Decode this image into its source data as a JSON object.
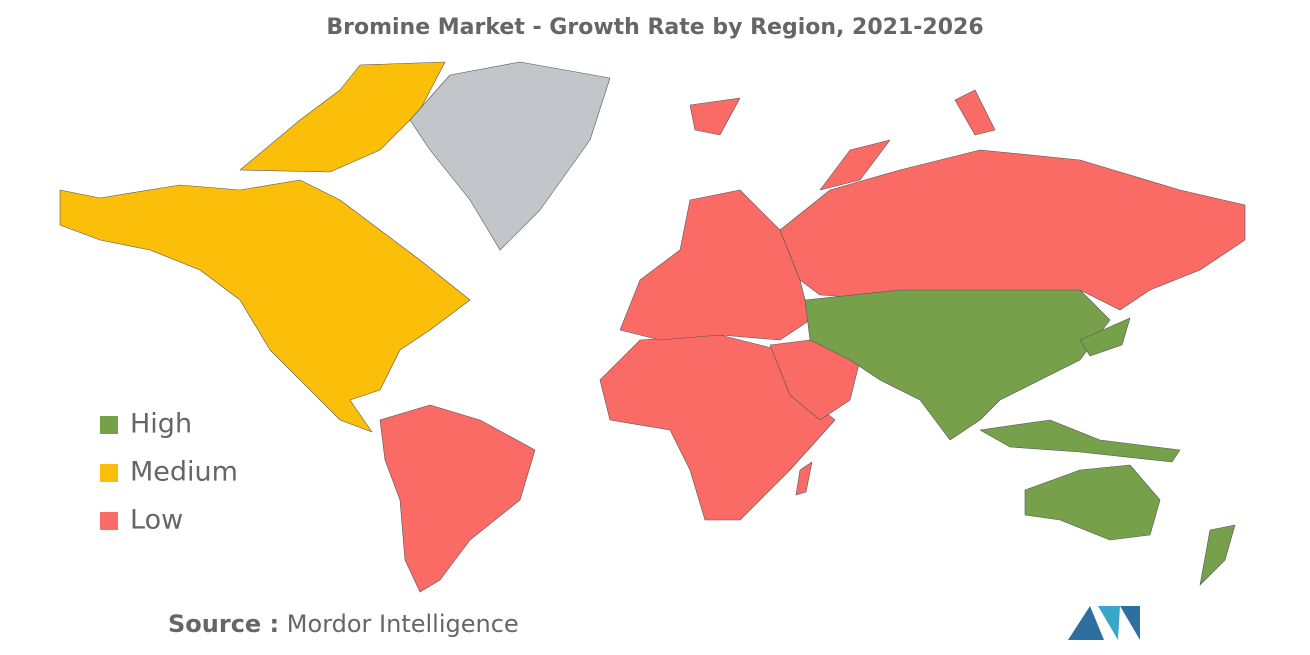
{
  "title": "Bromine Market - Growth Rate by Region, 2021-2026",
  "legend": [
    {
      "label": "High",
      "color": "#77a04a"
    },
    {
      "label": "Medium",
      "color": "#fbbf0a"
    },
    {
      "label": "Low",
      "color": "#fa6b66"
    }
  ],
  "other_color": "#c2c5ca",
  "source": {
    "label": "Source :",
    "text": "Mordor Intelligence"
  }
}
